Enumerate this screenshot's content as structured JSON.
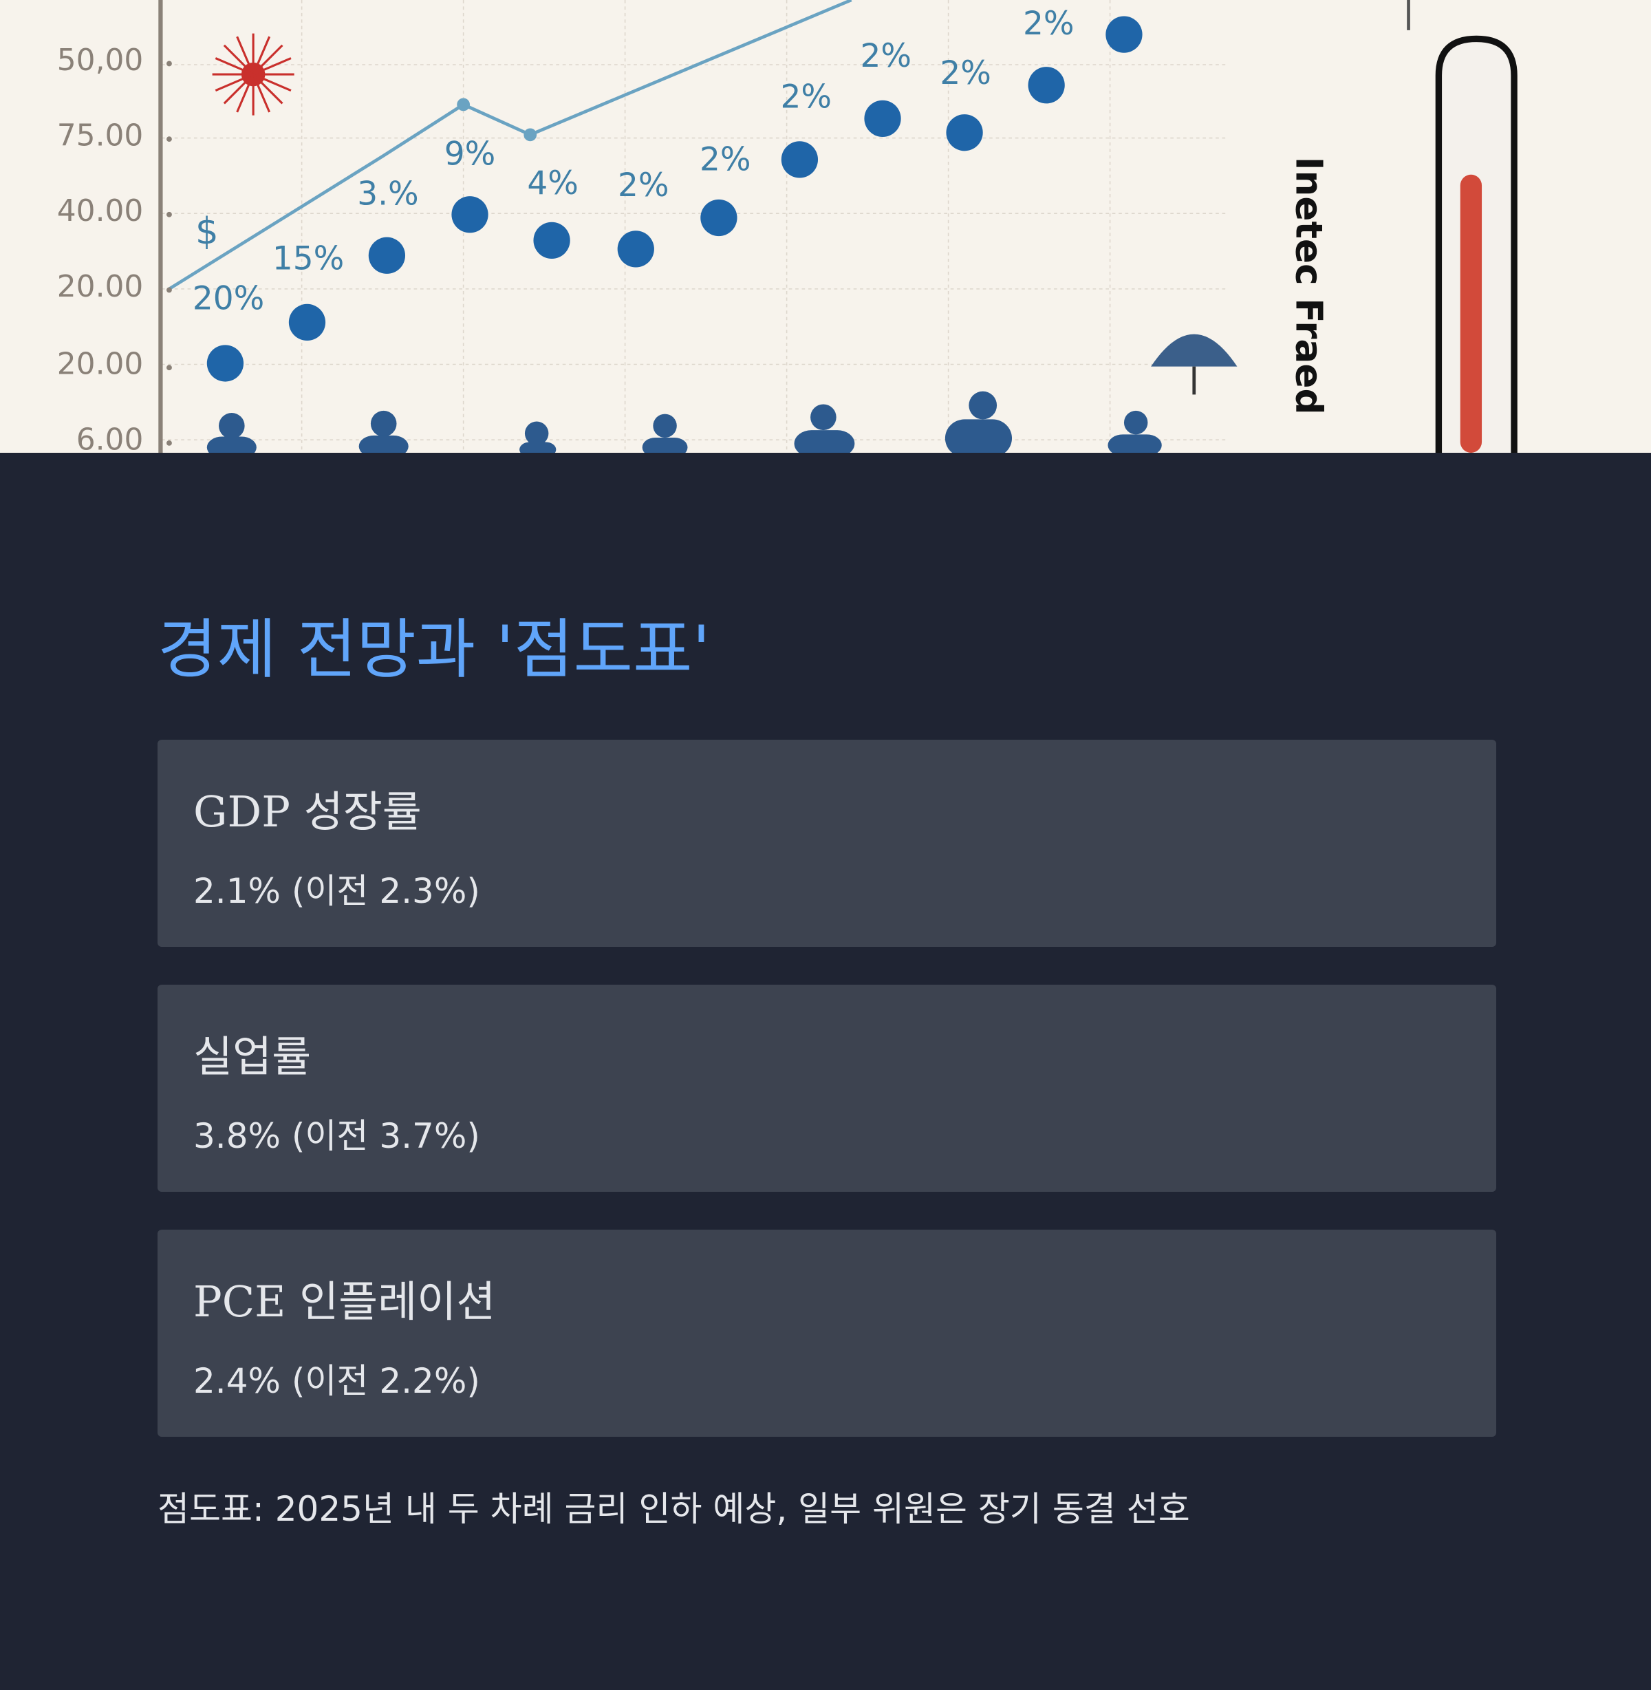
{
  "hero": {
    "y_labels": [
      "50,00",
      "75.00",
      "40.00",
      "20.00",
      "20.00",
      "6.00"
    ],
    "point_labels": [
      "20%",
      "15%",
      "3.%",
      "9%",
      "4%",
      "2%",
      "2%",
      "2%",
      "2%",
      "2%",
      "2%"
    ],
    "symbol": "$",
    "side_text": "Inetec Fraed"
  },
  "section": {
    "title": "경제 전망과 '점도표'",
    "cards": [
      {
        "title": "GDP 성장률",
        "value": "2.1% (이전 2.3%)"
      },
      {
        "title": "실업률",
        "value": "3.8% (이전 3.7%)"
      },
      {
        "title": "PCE 인플레이션",
        "value": "2.4% (이전 2.2%)"
      }
    ],
    "note": "점도표: 2025년 내 두 차례 금리 인하 예상, 일부 위원은 장기 동결 선호"
  }
}
